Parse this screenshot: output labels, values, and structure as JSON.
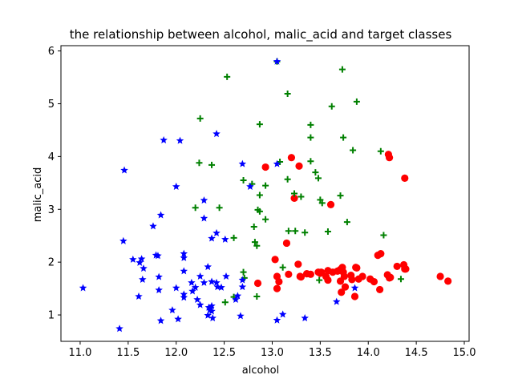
{
  "chart_data": {
    "type": "scatter",
    "title": "the relationship between alcohol, malic_acid and target classes",
    "xlabel": "alcohol",
    "ylabel": "malic_acid",
    "xlim": [
      10.8,
      15.05
    ],
    "ylim": [
      0.5,
      6.1
    ],
    "xticks": [
      "11.0",
      "11.5",
      "12.0",
      "12.5",
      "13.0",
      "13.5",
      "14.0",
      "14.5",
      "15.0"
    ],
    "yticks": [
      "1",
      "2",
      "3",
      "4",
      "5",
      "6"
    ],
    "grid": false,
    "series": [
      {
        "marker": "circle",
        "color": "#ff0000",
        "points": [
          [
            13.2,
            3.98
          ],
          [
            13.28,
            3.82
          ],
          [
            12.93,
            3.8
          ],
          [
            13.61,
            3.09
          ],
          [
            14.21,
            4.04
          ],
          [
            14.22,
            3.98
          ],
          [
            14.38,
            3.59
          ],
          [
            13.23,
            3.21
          ],
          [
            13.15,
            2.36
          ],
          [
            14.13,
            2.16
          ],
          [
            14.1,
            2.13
          ],
          [
            13.03,
            2.05
          ],
          [
            13.27,
            1.96
          ],
          [
            14.37,
            1.95
          ],
          [
            13.87,
            1.9
          ],
          [
            13.73,
            1.9
          ],
          [
            13.88,
            1.89
          ],
          [
            14.3,
            1.92
          ],
          [
            14.38,
            1.87
          ],
          [
            13.58,
            1.84
          ],
          [
            13.51,
            1.81
          ],
          [
            13.48,
            1.81
          ],
          [
            13.74,
            1.81
          ],
          [
            13.68,
            1.83
          ],
          [
            13.63,
            1.81
          ],
          [
            13.4,
            1.77
          ],
          [
            13.36,
            1.78
          ],
          [
            13.5,
            1.79
          ],
          [
            13.56,
            1.73
          ],
          [
            13.17,
            1.77
          ],
          [
            13.05,
            1.73
          ],
          [
            13.29,
            1.73
          ],
          [
            13.58,
            1.66
          ],
          [
            14.22,
            1.7
          ],
          [
            14.02,
            1.68
          ],
          [
            13.83,
            1.67
          ],
          [
            13.3,
            1.72
          ],
          [
            13.07,
            1.63
          ],
          [
            14.2,
            1.76
          ],
          [
            14.06,
            1.63
          ],
          [
            13.75,
            1.73
          ],
          [
            13.76,
            1.53
          ],
          [
            14.75,
            1.73
          ],
          [
            14.83,
            1.64
          ],
          [
            13.05,
            1.5
          ],
          [
            12.85,
            1.6
          ],
          [
            14.12,
            1.48
          ],
          [
            13.86,
            1.35
          ],
          [
            14.23,
            1.71
          ],
          [
            14.39,
            1.87
          ],
          [
            13.71,
            1.86
          ],
          [
            13.9,
            1.68
          ],
          [
            13.72,
            1.43
          ],
          [
            13.71,
            1.64
          ],
          [
            13.94,
            1.73
          ],
          [
            13.82,
            1.75
          ]
        ]
      },
      {
        "marker": "plus",
        "color": "#008000",
        "points": [
          [
            12.53,
            5.51
          ],
          [
            13.05,
            5.8
          ],
          [
            13.73,
            5.65
          ],
          [
            13.16,
            5.19
          ],
          [
            13.62,
            4.95
          ],
          [
            13.88,
            5.04
          ],
          [
            12.25,
            4.72
          ],
          [
            12.87,
            4.61
          ],
          [
            13.4,
            4.6
          ],
          [
            13.74,
            4.36
          ],
          [
            13.84,
            4.12
          ],
          [
            14.13,
            4.1
          ],
          [
            12.24,
            3.88
          ],
          [
            12.37,
            3.84
          ],
          [
            13.4,
            3.91
          ],
          [
            13.45,
            3.7
          ],
          [
            13.48,
            3.59
          ],
          [
            13.08,
            3.9
          ],
          [
            12.7,
            3.55
          ],
          [
            13.16,
            3.57
          ],
          [
            12.79,
            3.48
          ],
          [
            12.93,
            3.45
          ],
          [
            12.87,
            3.27
          ],
          [
            13.71,
            3.26
          ],
          [
            13.23,
            3.3
          ],
          [
            13.3,
            3.24
          ],
          [
            13.5,
            3.18
          ],
          [
            13.52,
            3.12
          ],
          [
            12.45,
            3.03
          ],
          [
            12.2,
            3.03
          ],
          [
            12.85,
            2.99
          ],
          [
            12.87,
            2.96
          ],
          [
            12.93,
            2.81
          ],
          [
            12.81,
            2.67
          ],
          [
            13.78,
            2.76
          ],
          [
            13.17,
            2.59
          ],
          [
            13.34,
            2.56
          ],
          [
            13.58,
            2.58
          ],
          [
            13.4,
            4.36
          ],
          [
            14.16,
            2.51
          ],
          [
            12.6,
            2.46
          ],
          [
            12.82,
            2.38
          ],
          [
            12.84,
            2.31
          ],
          [
            13.11,
            1.9
          ],
          [
            12.7,
            1.81
          ],
          [
            12.71,
            1.7
          ],
          [
            12.84,
            1.35
          ],
          [
            12.51,
            1.24
          ],
          [
            12.6,
            1.34
          ],
          [
            13.49,
            1.66
          ],
          [
            14.34,
            1.68
          ],
          [
            13.24,
            2.59
          ]
        ]
      },
      {
        "marker": "star",
        "color": "#0000ff",
        "points": [
          [
            13.05,
            5.8
          ],
          [
            12.42,
            4.43
          ],
          [
            11.87,
            4.31
          ],
          [
            12.04,
            4.3
          ],
          [
            11.46,
            3.74
          ],
          [
            12.69,
            3.86
          ],
          [
            13.05,
            3.86
          ],
          [
            12.0,
            3.43
          ],
          [
            12.77,
            3.43
          ],
          [
            12.29,
            3.17
          ],
          [
            12.29,
            2.83
          ],
          [
            11.84,
            2.89
          ],
          [
            11.76,
            2.68
          ],
          [
            11.45,
            2.4
          ],
          [
            12.42,
            2.55
          ],
          [
            12.37,
            2.45
          ],
          [
            12.51,
            2.43
          ],
          [
            11.55,
            2.05
          ],
          [
            11.64,
            2.06
          ],
          [
            11.62,
            1.99
          ],
          [
            11.79,
            2.13
          ],
          [
            11.81,
            2.12
          ],
          [
            12.08,
            2.08
          ],
          [
            12.08,
            2.16
          ],
          [
            11.65,
            1.67
          ],
          [
            11.66,
            1.88
          ],
          [
            11.82,
            1.72
          ],
          [
            12.08,
            1.83
          ],
          [
            12.25,
            1.73
          ],
          [
            12.16,
            1.61
          ],
          [
            12.33,
            1.91
          ],
          [
            12.52,
            1.73
          ],
          [
            12.37,
            1.63
          ],
          [
            12.42,
            1.61
          ],
          [
            12.37,
            1.17
          ],
          [
            12.29,
            1.61
          ],
          [
            12.47,
            1.52
          ],
          [
            12.43,
            1.53
          ],
          [
            12.2,
            1.52
          ],
          [
            12.17,
            1.45
          ],
          [
            12.0,
            1.51
          ],
          [
            12.08,
            1.33
          ],
          [
            12.08,
            1.39
          ],
          [
            11.82,
            1.47
          ],
          [
            11.61,
            1.35
          ],
          [
            12.69,
            1.53
          ],
          [
            12.69,
            1.66
          ],
          [
            12.64,
            1.36
          ],
          [
            12.62,
            1.29
          ],
          [
            12.22,
            1.29
          ],
          [
            11.03,
            1.51
          ],
          [
            12.25,
            1.19
          ],
          [
            12.34,
            1.14
          ],
          [
            12.35,
            1.09
          ],
          [
            12.37,
            1.07
          ],
          [
            11.96,
            1.09
          ],
          [
            12.36,
            1.13
          ],
          [
            12.33,
            0.99
          ],
          [
            12.38,
            0.94
          ],
          [
            12.67,
            0.98
          ],
          [
            13.11,
            1.01
          ],
          [
            13.05,
            0.9
          ],
          [
            12.02,
            0.92
          ],
          [
            11.84,
            0.89
          ],
          [
            13.34,
            0.94
          ],
          [
            11.41,
            0.74
          ],
          [
            13.67,
            1.25
          ],
          [
            13.86,
            1.51
          ]
        ]
      }
    ]
  }
}
